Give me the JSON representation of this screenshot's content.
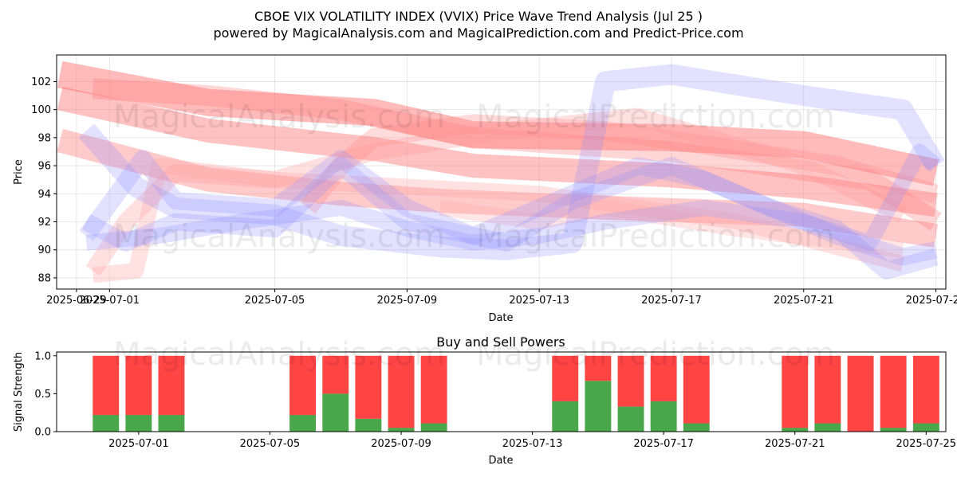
{
  "title_line1": "CBOE VIX VOLATILITY INDEX (VVIX) Price Wave Trend Analysis (Jul 25 )",
  "title_line2": "powered by MagicalAnalysis.com and MagicalPrediction.com and Predict-Price.com",
  "watermarks": [
    "MagicalAnalysis.com",
    "MagicalPrediction.com"
  ],
  "colors": {
    "sell": "#ff4444",
    "buy": "#4aa64a",
    "wave_red": "#ff6666",
    "wave_blue": "#8c8cff"
  },
  "chart_data": [
    {
      "type": "line",
      "name": "price-wave-chart",
      "xlabel": "Date",
      "ylabel": "Price",
      "xlim_days": [
        -0.6,
        26.3
      ],
      "ylim": [
        87.2,
        103.9
      ],
      "x_ticks": [
        {
          "day": 0,
          "label": "2025-06-29"
        },
        {
          "day": 1,
          "label": "2025-07-01"
        },
        {
          "day": 6,
          "label": "2025-07-05"
        },
        {
          "day": 10,
          "label": "2025-07-09"
        },
        {
          "day": 14,
          "label": "2025-07-13"
        },
        {
          "day": 18,
          "label": "2025-07-17"
        },
        {
          "day": 22,
          "label": "2025-07-21"
        },
        {
          "day": 26,
          "label": "2025-07-25"
        }
      ],
      "y_ticks": [
        88,
        90,
        92,
        94,
        96,
        98,
        100,
        102
      ],
      "grid": true,
      "series": [
        {
          "name": "red-wave-1",
          "color": "#ff6666",
          "width": 34,
          "opacity": 0.45,
          "points": [
            [
              -0.5,
              102.5
            ],
            [
              4,
              100.5
            ],
            [
              9,
              99.8
            ],
            [
              12,
              98.2
            ],
            [
              18,
              98.0
            ],
            [
              22,
              97.5
            ],
            [
              26,
              95.5
            ]
          ]
        },
        {
          "name": "red-wave-2",
          "color": "#ff6666",
          "width": 30,
          "opacity": 0.4,
          "points": [
            [
              -0.5,
              100.8
            ],
            [
              4,
              98.5
            ],
            [
              9,
              97.2
            ],
            [
              12,
              96.0
            ],
            [
              18,
              95.3
            ],
            [
              22,
              94.5
            ],
            [
              26,
              93.2
            ]
          ]
        },
        {
          "name": "red-wave-3",
          "color": "#ff6666",
          "width": 30,
          "opacity": 0.35,
          "points": [
            [
              -0.5,
              97.8
            ],
            [
              4,
              95.0
            ],
            [
              8,
              94.0
            ],
            [
              11,
              93.5
            ],
            [
              16,
              93.0
            ],
            [
              22,
              92.5
            ],
            [
              26,
              91.0
            ]
          ]
        },
        {
          "name": "red-wave-4",
          "color": "#ff7777",
          "width": 26,
          "opacity": 0.3,
          "points": [
            [
              0.5,
              101.5
            ],
            [
              4,
              101.0
            ],
            [
              8,
              100.0
            ],
            [
              12,
              98.0
            ],
            [
              18,
              97.0
            ],
            [
              24,
              95.0
            ],
            [
              26,
              92.0
            ]
          ]
        },
        {
          "name": "red-wave-5",
          "color": "#ff8888",
          "width": 24,
          "opacity": 0.3,
          "points": [
            [
              7,
              93.0
            ],
            [
              8,
              96.0
            ],
            [
              9,
              98.0
            ],
            [
              12,
              99.0
            ],
            [
              16,
              98.5
            ],
            [
              19,
              97.5
            ],
            [
              23,
              96.0
            ],
            [
              26,
              94.0
            ]
          ]
        },
        {
          "name": "red-wave-6",
          "color": "#ff9999",
          "width": 22,
          "opacity": 0.3,
          "points": [
            [
              0.5,
              88.5
            ],
            [
              1.5,
              92.0
            ],
            [
              3,
              95.5
            ],
            [
              6,
              95.0
            ],
            [
              9,
              97.0
            ],
            [
              13,
              98.5
            ],
            [
              17,
              99.5
            ],
            [
              22,
              96.0
            ],
            [
              25,
              92.5
            ]
          ]
        },
        {
          "name": "red-wave-7",
          "color": "#ffaaaa",
          "width": 20,
          "opacity": 0.35,
          "points": [
            [
              0.5,
              88.2
            ],
            [
              1.8,
              88.5
            ],
            [
              2.5,
              96.0
            ],
            [
              6,
              95.0
            ],
            [
              10,
              94.5
            ],
            [
              14,
              94.0
            ],
            [
              20,
              92.0
            ],
            [
              25,
              89.0
            ]
          ]
        },
        {
          "name": "red-wave-8",
          "color": "#ffaaaa",
          "width": 20,
          "opacity": 0.3,
          "points": [
            [
              11,
              93.0
            ],
            [
              14,
              92.0
            ],
            [
              16,
              93.0
            ],
            [
              20,
              91.5
            ],
            [
              25,
              90.0
            ]
          ]
        },
        {
          "name": "blue-wave-1",
          "color": "#8c8cff",
          "width": 26,
          "opacity": 0.25,
          "points": [
            [
              0.3,
              98.5
            ],
            [
              1.8,
              94.5
            ],
            [
              3,
              93.0
            ],
            [
              6,
              92.5
            ],
            [
              8,
              91.0
            ],
            [
              11,
              90.2
            ],
            [
              13,
              90.0
            ],
            [
              15,
              90.5
            ],
            [
              16,
              102.0
            ],
            [
              18,
              102.5
            ],
            [
              22,
              101.0
            ],
            [
              25,
              100.0
            ],
            [
              26,
              96.0
            ]
          ]
        },
        {
          "name": "blue-wave-2",
          "color": "#8c8cff",
          "width": 22,
          "opacity": 0.25,
          "points": [
            [
              0.3,
              91.0
            ],
            [
              2,
              96.5
            ],
            [
              3,
              93.5
            ],
            [
              6,
              93.0
            ],
            [
              8,
              96.5
            ],
            [
              10,
              93.0
            ],
            [
              12,
              91.0
            ],
            [
              15,
              94.0
            ],
            [
              17,
              96.0
            ],
            [
              19,
              95.0
            ],
            [
              23,
              91.0
            ],
            [
              25,
              89.5
            ],
            [
              26,
              90.0
            ]
          ]
        },
        {
          "name": "blue-wave-3",
          "color": "#8c8cff",
          "width": 22,
          "opacity": 0.25,
          "points": [
            [
              0.3,
              92.0
            ],
            [
              1.5,
              90.5
            ],
            [
              3,
              92.0
            ],
            [
              6,
              91.5
            ],
            [
              8,
              96.0
            ],
            [
              10,
              92.0
            ],
            [
              13,
              90.5
            ],
            [
              15,
              93.5
            ],
            [
              18,
              96.0
            ],
            [
              21,
              93.0
            ],
            [
              23,
              91.5
            ],
            [
              24.5,
              88.5
            ],
            [
              26,
              89.5
            ]
          ]
        },
        {
          "name": "blue-wave-4",
          "color": "#8c8cff",
          "width": 20,
          "opacity": 0.25,
          "points": [
            [
              0.3,
              90.5
            ],
            [
              2.5,
              91.0
            ],
            [
              5,
              92.0
            ],
            [
              8,
              93.0
            ],
            [
              10,
              91.5
            ],
            [
              12,
              90.5
            ],
            [
              14,
              91.0
            ],
            [
              16,
              92.0
            ],
            [
              19,
              93.0
            ],
            [
              22,
              92.0
            ],
            [
              24,
              90.5
            ],
            [
              25.5,
              97.0
            ],
            [
              26,
              96.0
            ]
          ]
        }
      ]
    },
    {
      "type": "bar",
      "name": "buy-sell-powers-chart",
      "title": "Buy and Sell Powers",
      "xlabel": "Date",
      "ylabel": "Signal Strength",
      "xlim_days": [
        -0.5,
        26.6
      ],
      "ylim": [
        0,
        1.05
      ],
      "x_ticks": [
        {
          "day": 2,
          "label": "2025-07-01"
        },
        {
          "day": 6,
          "label": "2025-07-05"
        },
        {
          "day": 10,
          "label": "2025-07-09"
        },
        {
          "day": 14,
          "label": "2025-07-13"
        },
        {
          "day": 18,
          "label": "2025-07-17"
        },
        {
          "day": 22,
          "label": "2025-07-21"
        },
        {
          "day": 26,
          "label": "2025-07-25"
        }
      ],
      "y_ticks": [
        {
          "value": 0,
          "label": "0.0"
        },
        {
          "value": 0.5,
          "label": "0.5"
        },
        {
          "value": 1,
          "label": "1.0"
        }
      ],
      "series": [
        {
          "name": "Buy",
          "color": "#4aa64a"
        },
        {
          "name": "Sell",
          "color": "#ff4444"
        }
      ],
      "bars": [
        {
          "day": 1,
          "buy": 0.22,
          "sell": 0.78
        },
        {
          "day": 2,
          "buy": 0.22,
          "sell": 0.78
        },
        {
          "day": 3,
          "buy": 0.22,
          "sell": 0.78
        },
        {
          "day": 7,
          "buy": 0.22,
          "sell": 0.78
        },
        {
          "day": 8,
          "buy": 0.5,
          "sell": 0.5
        },
        {
          "day": 9,
          "buy": 0.17,
          "sell": 0.83
        },
        {
          "day": 10,
          "buy": 0.05,
          "sell": 0.95
        },
        {
          "day": 11,
          "buy": 0.11,
          "sell": 0.89
        },
        {
          "day": 15,
          "buy": 0.4,
          "sell": 0.6
        },
        {
          "day": 16,
          "buy": 0.67,
          "sell": 0.33
        },
        {
          "day": 17,
          "buy": 0.33,
          "sell": 0.67
        },
        {
          "day": 18,
          "buy": 0.4,
          "sell": 0.6
        },
        {
          "day": 19,
          "buy": 0.11,
          "sell": 0.89
        },
        {
          "day": 22,
          "buy": 0.05,
          "sell": 0.95
        },
        {
          "day": 23,
          "buy": 0.11,
          "sell": 0.89
        },
        {
          "day": 24,
          "buy": 0.0,
          "sell": 1.0
        },
        {
          "day": 25,
          "buy": 0.05,
          "sell": 0.95
        },
        {
          "day": 26,
          "buy": 0.11,
          "sell": 0.89
        }
      ]
    }
  ]
}
